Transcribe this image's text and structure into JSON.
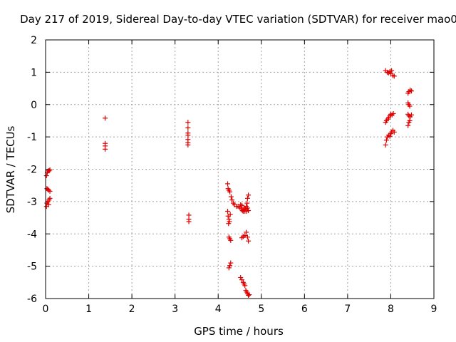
{
  "chart_data": {
    "type": "scatter",
    "title": "Day 217 of 2019, Sidereal Day-to-day VTEC variation (SDTVAR) for receiver mao0",
    "xlabel": "GPS time / hours",
    "ylabel": "SDTVAR / TECUs",
    "xlim": [
      0,
      9
    ],
    "ylim": [
      -6,
      2
    ],
    "x_ticks": [
      "0",
      "1",
      "2",
      "3",
      "4",
      "5",
      "6",
      "7",
      "8",
      "9"
    ],
    "y_ticks": [
      "2",
      "1",
      "0",
      "-1",
      "-2",
      "-3",
      "-4",
      "-5",
      "-6"
    ],
    "grid": true,
    "marker": "+",
    "color": "#e00000",
    "series": [
      {
        "name": "SDTVAR",
        "points": [
          [
            0.02,
            -3.15
          ],
          [
            0.03,
            -3.05
          ],
          [
            0.05,
            -3.0
          ],
          [
            0.07,
            -3.1
          ],
          [
            0.08,
            -2.95
          ],
          [
            0.1,
            -2.9
          ],
          [
            0.03,
            -2.6
          ],
          [
            0.05,
            -2.62
          ],
          [
            0.07,
            -2.65
          ],
          [
            0.1,
            -2.68
          ],
          [
            0.02,
            -2.2
          ],
          [
            0.04,
            -2.1
          ],
          [
            0.06,
            -2.05
          ],
          [
            0.08,
            -2.05
          ],
          [
            0.1,
            -2.02
          ],
          [
            1.38,
            -0.42
          ],
          [
            1.38,
            -1.2
          ],
          [
            1.38,
            -1.28
          ],
          [
            1.38,
            -1.38
          ],
          [
            3.3,
            -0.55
          ],
          [
            3.3,
            -0.72
          ],
          [
            3.3,
            -0.88
          ],
          [
            3.3,
            -0.95
          ],
          [
            3.3,
            -1.08
          ],
          [
            3.3,
            -1.18
          ],
          [
            3.3,
            -1.25
          ],
          [
            3.32,
            -3.42
          ],
          [
            3.32,
            -3.55
          ],
          [
            3.32,
            -3.62
          ],
          [
            4.22,
            -2.45
          ],
          [
            4.23,
            -2.6
          ],
          [
            4.25,
            -2.65
          ],
          [
            4.27,
            -2.7
          ],
          [
            4.3,
            -2.85
          ],
          [
            4.32,
            -2.95
          ],
          [
            4.35,
            -3.05
          ],
          [
            4.38,
            -3.1
          ],
          [
            4.42,
            -3.15
          ],
          [
            4.46,
            -3.15
          ],
          [
            4.5,
            -3.18
          ],
          [
            4.53,
            -3.22
          ],
          [
            4.56,
            -3.28
          ],
          [
            4.58,
            -3.3
          ],
          [
            4.6,
            -3.25
          ],
          [
            4.63,
            -3.22
          ],
          [
            4.65,
            -3.15
          ],
          [
            4.67,
            -3.05
          ],
          [
            4.68,
            -2.9
          ],
          [
            4.7,
            -2.8
          ],
          [
            4.52,
            -3.1
          ],
          [
            4.55,
            -3.12
          ],
          [
            4.6,
            -3.18
          ],
          [
            4.62,
            -3.3
          ],
          [
            4.66,
            -3.3
          ],
          [
            4.68,
            -3.2
          ],
          [
            4.7,
            -3.28
          ],
          [
            4.22,
            -3.3
          ],
          [
            4.23,
            -3.45
          ],
          [
            4.25,
            -3.55
          ],
          [
            4.24,
            -3.68
          ],
          [
            4.26,
            -3.62
          ],
          [
            4.28,
            -3.4
          ],
          [
            4.25,
            -4.1
          ],
          [
            4.27,
            -4.15
          ],
          [
            4.29,
            -4.2
          ],
          [
            4.55,
            -4.12
          ],
          [
            4.58,
            -4.08
          ],
          [
            4.62,
            -4.05
          ],
          [
            4.65,
            -3.95
          ],
          [
            4.68,
            -4.1
          ],
          [
            4.7,
            -4.22
          ],
          [
            4.25,
            -5.05
          ],
          [
            4.27,
            -4.98
          ],
          [
            4.29,
            -4.9
          ],
          [
            4.52,
            -5.35
          ],
          [
            4.55,
            -5.42
          ],
          [
            4.58,
            -5.5
          ],
          [
            4.6,
            -5.55
          ],
          [
            4.62,
            -5.6
          ],
          [
            4.64,
            -5.75
          ],
          [
            4.66,
            -5.8
          ],
          [
            4.68,
            -5.85
          ],
          [
            4.7,
            -5.9
          ],
          [
            4.72,
            -5.88
          ],
          [
            7.88,
            1.05
          ],
          [
            7.92,
            1.0
          ],
          [
            7.95,
            0.98
          ],
          [
            7.98,
            1.02
          ],
          [
            8.0,
            0.95
          ],
          [
            8.02,
            1.05
          ],
          [
            8.05,
            0.9
          ],
          [
            8.08,
            0.88
          ],
          [
            7.88,
            -0.55
          ],
          [
            7.9,
            -0.5
          ],
          [
            7.93,
            -0.45
          ],
          [
            7.95,
            -0.4
          ],
          [
            7.98,
            -0.35
          ],
          [
            8.0,
            -0.3
          ],
          [
            8.03,
            -0.32
          ],
          [
            8.06,
            -0.28
          ],
          [
            7.88,
            -1.25
          ],
          [
            7.9,
            -1.1
          ],
          [
            7.92,
            -1.0
          ],
          [
            7.95,
            -0.95
          ],
          [
            7.98,
            -0.98
          ],
          [
            8.0,
            -0.9
          ],
          [
            8.02,
            -0.85
          ],
          [
            8.05,
            -0.8
          ],
          [
            8.08,
            -0.85
          ],
          [
            8.4,
            0.35
          ],
          [
            8.42,
            0.4
          ],
          [
            8.45,
            0.45
          ],
          [
            8.48,
            0.42
          ],
          [
            8.4,
            0.05
          ],
          [
            8.42,
            0.0
          ],
          [
            8.44,
            -0.05
          ],
          [
            8.4,
            -0.3
          ],
          [
            8.42,
            -0.35
          ],
          [
            8.45,
            -0.38
          ],
          [
            8.48,
            -0.32
          ],
          [
            8.4,
            -0.65
          ],
          [
            8.42,
            -0.55
          ],
          [
            8.44,
            -0.5
          ]
        ]
      }
    ]
  }
}
